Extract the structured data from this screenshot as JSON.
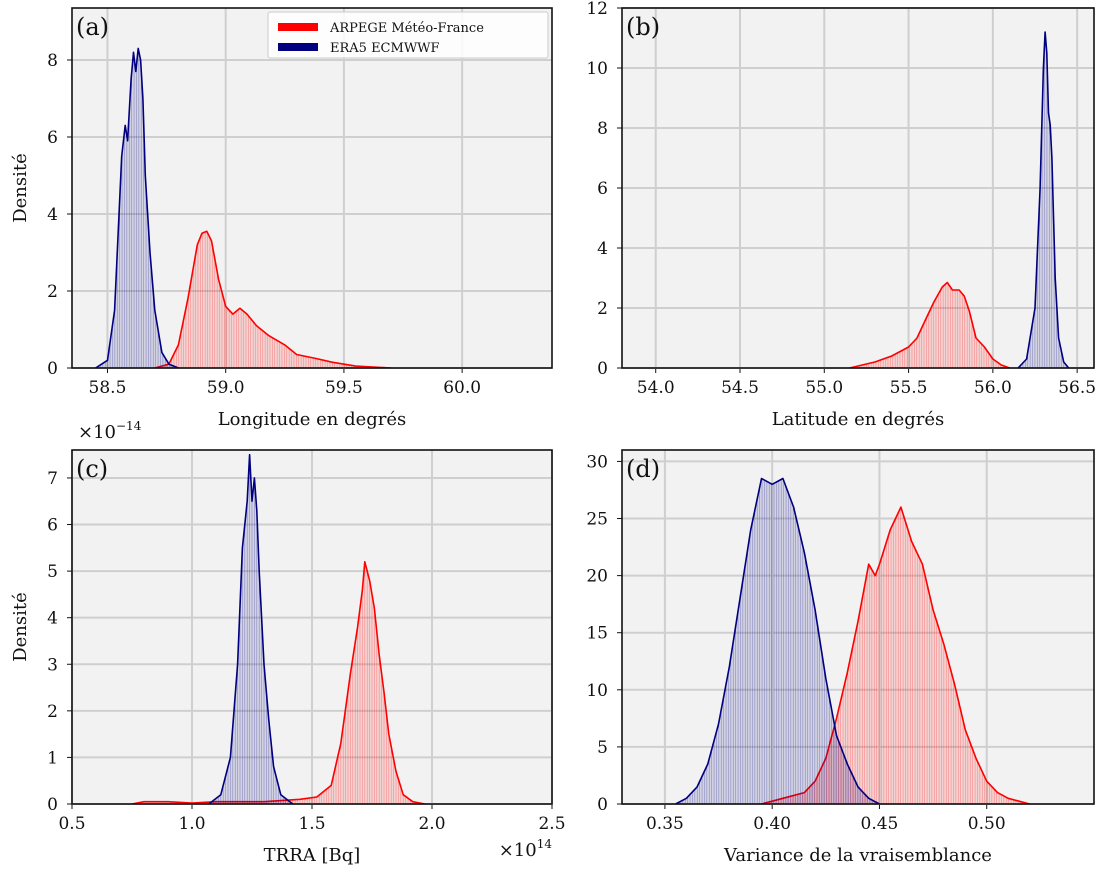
{
  "figure": {
    "colors": {
      "arpege": "#ff0000",
      "era5": "#000080",
      "panel_bg": "#f2f2f2",
      "grid": "#cfcfcf"
    },
    "legend": {
      "items": [
        "ARPEGE Météo-France",
        "ERA5 ECMWWF"
      ],
      "placement": "top-right of panel (a)"
    }
  },
  "chart_data": [
    {
      "id": "a",
      "type": "area",
      "panel_label": "(a)",
      "xlabel": "Longitude en degrés",
      "ylabel": "Densité",
      "xlim": [
        58.35,
        60.38
      ],
      "ylim": [
        0,
        9.35
      ],
      "xticks": [
        58.5,
        59.0,
        59.5,
        60.0
      ],
      "xtick_labels": [
        "58.5",
        "59.0",
        "59.5",
        "60.0"
      ],
      "yticks": [
        0,
        2,
        4,
        6,
        8
      ],
      "ytick_labels": [
        "0",
        "2",
        "4",
        "6",
        "8"
      ],
      "grid": true,
      "legend": "top-right",
      "series": [
        {
          "name": "ARPEGE Météo-France",
          "color": "#ff0000",
          "x": [
            58.7,
            58.76,
            58.8,
            58.84,
            58.88,
            58.9,
            58.92,
            58.94,
            58.97,
            59.0,
            59.03,
            59.06,
            59.09,
            59.13,
            59.18,
            59.25,
            59.3,
            59.38,
            59.45,
            59.55,
            59.7
          ],
          "y": [
            0,
            0.1,
            0.6,
            1.8,
            3.2,
            3.5,
            3.55,
            3.3,
            2.3,
            1.6,
            1.4,
            1.55,
            1.4,
            1.1,
            0.85,
            0.6,
            0.35,
            0.25,
            0.15,
            0.05,
            0
          ]
        },
        {
          "name": "ERA5 ECMWWF",
          "color": "#000080",
          "x": [
            58.45,
            58.5,
            58.53,
            58.56,
            58.575,
            58.585,
            58.6,
            58.61,
            58.62,
            58.63,
            58.64,
            58.65,
            58.66,
            58.68,
            58.7,
            58.73,
            58.76,
            58.8
          ],
          "y": [
            0,
            0.2,
            1.5,
            5.5,
            6.3,
            5.9,
            7.5,
            8.2,
            7.7,
            8.3,
            8.0,
            7.0,
            5.0,
            3.0,
            1.5,
            0.4,
            0.1,
            0
          ]
        }
      ]
    },
    {
      "id": "b",
      "type": "area",
      "panel_label": "(b)",
      "xlabel": "Latitude en degrés",
      "ylabel": "",
      "xlim": [
        53.8,
        56.6
      ],
      "ylim": [
        0,
        12
      ],
      "xticks": [
        54.0,
        54.5,
        55.0,
        55.5,
        56.0,
        56.5
      ],
      "xtick_labels": [
        "54.0",
        "54.5",
        "55.0",
        "55.5",
        "56.0",
        "56.5"
      ],
      "yticks": [
        0,
        2,
        4,
        6,
        8,
        10,
        12
      ],
      "ytick_labels": [
        "0",
        "2",
        "4",
        "6",
        "8",
        "10",
        "12"
      ],
      "grid": true,
      "series": [
        {
          "name": "ARPEGE Météo-France",
          "color": "#ff0000",
          "x": [
            55.15,
            55.3,
            55.4,
            55.5,
            55.55,
            55.6,
            55.65,
            55.7,
            55.73,
            55.76,
            55.8,
            55.83,
            55.86,
            55.9,
            55.95,
            56.0,
            56.05,
            56.1
          ],
          "y": [
            0,
            0.2,
            0.4,
            0.7,
            1.0,
            1.6,
            2.2,
            2.7,
            2.85,
            2.6,
            2.6,
            2.4,
            1.9,
            1.0,
            0.7,
            0.3,
            0.1,
            0
          ]
        },
        {
          "name": "ERA5 ECMWWF",
          "color": "#000080",
          "x": [
            56.15,
            56.2,
            56.25,
            56.28,
            56.3,
            56.31,
            56.32,
            56.33,
            56.34,
            56.35,
            56.37,
            56.39,
            56.42,
            56.45
          ],
          "y": [
            0,
            0.3,
            2.0,
            6.0,
            10.0,
            11.2,
            10.5,
            8.5,
            8.1,
            7.0,
            3.0,
            1.0,
            0.2,
            0
          ]
        }
      ]
    },
    {
      "id": "c",
      "type": "area",
      "panel_label": "(c)",
      "xlabel": "TRRA [Bq]",
      "ylabel": "Densité",
      "xscale_label": "×10^14",
      "yscale_label": "×10^−14",
      "xlim": [
        0.5,
        2.5
      ],
      "ylim": [
        0,
        7.6
      ],
      "xticks": [
        0.5,
        1.0,
        1.5,
        2.0,
        2.5
      ],
      "xtick_labels": [
        "0.5",
        "1.0",
        "1.5",
        "2.0",
        "2.5"
      ],
      "yticks": [
        0,
        1,
        2,
        3,
        4,
        5,
        6,
        7
      ],
      "ytick_labels": [
        "0",
        "1",
        "2",
        "3",
        "4",
        "5",
        "6",
        "7"
      ],
      "grid": true,
      "series": [
        {
          "name": "ARPEGE Météo-France",
          "color": "#ff0000",
          "x": [
            0.75,
            0.8,
            0.9,
            1.0,
            1.1,
            1.3,
            1.45,
            1.52,
            1.58,
            1.62,
            1.66,
            1.69,
            1.71,
            1.72,
            1.74,
            1.76,
            1.78,
            1.8,
            1.82,
            1.85,
            1.88,
            1.92,
            1.97
          ],
          "y": [
            0,
            0.05,
            0.05,
            0.02,
            0.05,
            0.05,
            0.1,
            0.15,
            0.4,
            1.3,
            2.8,
            3.8,
            4.6,
            5.2,
            4.8,
            4.2,
            3.2,
            2.4,
            1.5,
            0.7,
            0.2,
            0.05,
            0
          ]
        },
        {
          "name": "ERA5 ECMWWF",
          "color": "#000080",
          "x": [
            1.07,
            1.12,
            1.16,
            1.19,
            1.21,
            1.23,
            1.24,
            1.25,
            1.26,
            1.27,
            1.28,
            1.29,
            1.3,
            1.32,
            1.34,
            1.37,
            1.42
          ],
          "y": [
            0,
            0.2,
            1.0,
            3.0,
            5.5,
            6.5,
            7.5,
            6.5,
            7.0,
            6.3,
            5.0,
            4.0,
            3.0,
            1.8,
            0.8,
            0.2,
            0
          ]
        }
      ]
    },
    {
      "id": "d",
      "type": "area",
      "panel_label": "(d)",
      "xlabel": "Variance de la vraisemblance",
      "ylabel": "",
      "xlim": [
        0.33,
        0.55
      ],
      "ylim": [
        0,
        31
      ],
      "xticks": [
        0.35,
        0.4,
        0.45,
        0.5
      ],
      "xtick_labels": [
        "0.35",
        "0.40",
        "0.45",
        "0.50"
      ],
      "yticks": [
        0,
        5,
        10,
        15,
        20,
        25,
        30
      ],
      "ytick_labels": [
        "0",
        "5",
        "10",
        "15",
        "20",
        "25",
        "30"
      ],
      "grid": true,
      "series": [
        {
          "name": "ARPEGE Météo-France",
          "color": "#ff0000",
          "x": [
            0.395,
            0.405,
            0.415,
            0.42,
            0.425,
            0.43,
            0.435,
            0.44,
            0.445,
            0.448,
            0.45,
            0.455,
            0.46,
            0.465,
            0.47,
            0.475,
            0.48,
            0.485,
            0.49,
            0.495,
            0.5,
            0.505,
            0.51,
            0.52
          ],
          "y": [
            0,
            0.5,
            1.0,
            2.0,
            4.0,
            7.5,
            11.5,
            16.0,
            21.0,
            20.0,
            21.0,
            24.0,
            26.0,
            23.0,
            21.0,
            17.0,
            14.0,
            10.5,
            6.5,
            4.0,
            2.0,
            1.0,
            0.5,
            0
          ]
        },
        {
          "name": "ERA5 ECMWWF",
          "color": "#000080",
          "x": [
            0.355,
            0.36,
            0.365,
            0.37,
            0.375,
            0.38,
            0.385,
            0.39,
            0.395,
            0.4,
            0.405,
            0.41,
            0.415,
            0.42,
            0.425,
            0.43,
            0.435,
            0.44,
            0.445,
            0.45
          ],
          "y": [
            0,
            0.5,
            1.5,
            3.5,
            7.0,
            12.0,
            18.0,
            24.0,
            28.5,
            28.0,
            28.5,
            26.0,
            22.0,
            17.0,
            11.0,
            6.0,
            3.5,
            1.5,
            0.5,
            0
          ]
        }
      ]
    }
  ]
}
